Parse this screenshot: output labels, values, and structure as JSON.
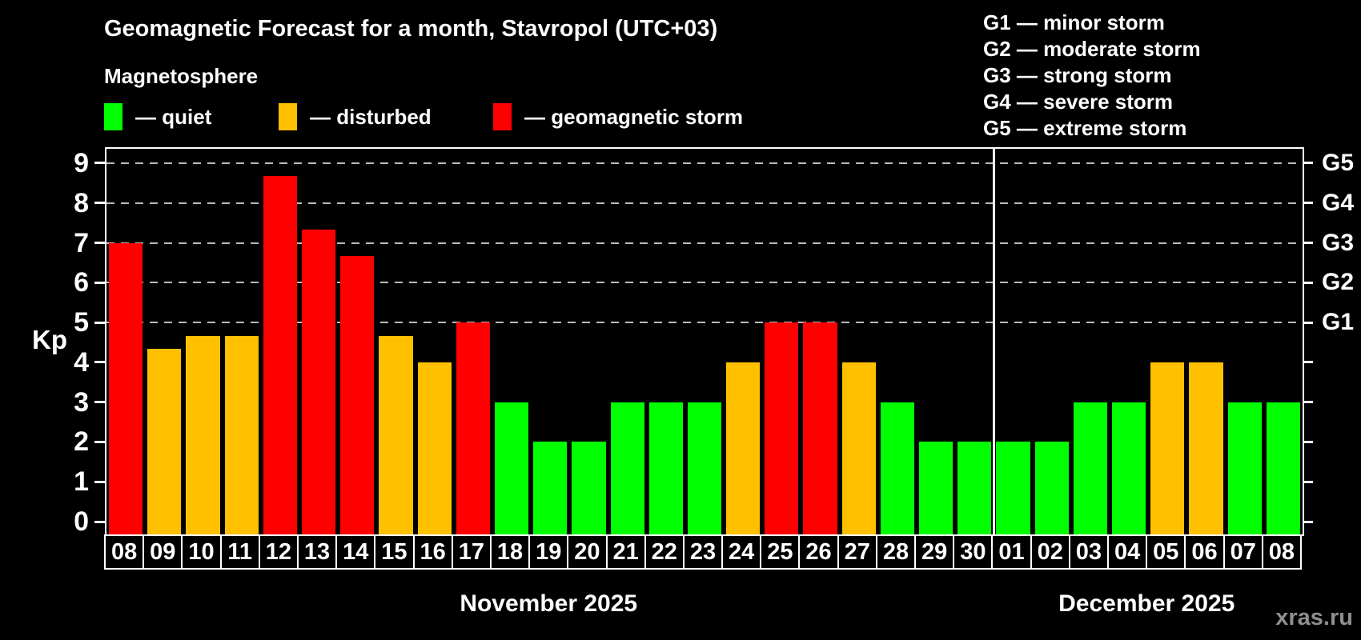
{
  "title": "Geomagnetic Forecast for a month, Stavropol (UTC+03)",
  "subtitle": "Magnetosphere",
  "legend": {
    "items": [
      {
        "label": "— quiet",
        "status": "quiet",
        "color": "#00ff00",
        "x": 130
      },
      {
        "label": "— disturbed",
        "status": "disturbed",
        "color": "#ffc000",
        "x": 348
      },
      {
        "label": "— geomagnetic storm",
        "status": "storm",
        "color": "#ff0000",
        "x": 616
      }
    ]
  },
  "storm_scale_legend": [
    "G1 — minor storm",
    "G2 — moderate storm",
    "G3 — strong storm",
    "G4 — severe storm",
    "G5 — extreme storm"
  ],
  "watermark": "xras.ru",
  "chart_data": {
    "type": "bar",
    "title": "Geomagnetic Forecast for a month, Stavropol (UTC+03)",
    "ylabel": "Kp",
    "y_ticks": [
      0,
      1,
      2,
      3,
      4,
      5,
      6,
      7,
      8,
      9
    ],
    "ylim": [
      -0.37,
      9.4
    ],
    "grid": "dashed horizontal lines at Kp 5-9 only",
    "gridlines_at": [
      5,
      6,
      7,
      8,
      9
    ],
    "right_axis_labels": [
      {
        "label": "G1",
        "value": 5
      },
      {
        "label": "G2",
        "value": 6
      },
      {
        "label": "G3",
        "value": 7
      },
      {
        "label": "G4",
        "value": 8
      },
      {
        "label": "G5",
        "value": 9
      }
    ],
    "categories": [
      "08",
      "09",
      "10",
      "11",
      "12",
      "13",
      "14",
      "15",
      "16",
      "17",
      "18",
      "19",
      "20",
      "21",
      "22",
      "23",
      "24",
      "25",
      "26",
      "27",
      "28",
      "29",
      "30",
      "01",
      "02",
      "03",
      "04",
      "05",
      "06",
      "07",
      "08"
    ],
    "values": [
      7,
      4.33,
      4.67,
      4.67,
      8.67,
      7.33,
      6.67,
      4.67,
      4,
      5,
      3,
      2,
      2,
      3,
      3,
      3,
      4,
      5,
      5,
      4,
      3,
      2,
      2,
      2,
      2,
      3,
      3,
      4,
      4,
      3,
      3
    ],
    "statuses": [
      "storm",
      "disturbed",
      "disturbed",
      "disturbed",
      "storm",
      "storm",
      "storm",
      "disturbed",
      "disturbed",
      "storm",
      "quiet",
      "quiet",
      "quiet",
      "quiet",
      "quiet",
      "quiet",
      "disturbed",
      "storm",
      "storm",
      "disturbed",
      "quiet",
      "quiet",
      "quiet",
      "quiet",
      "quiet",
      "quiet",
      "quiet",
      "disturbed",
      "disturbed",
      "quiet",
      "quiet"
    ],
    "colors": {
      "quiet": "#00ff00",
      "disturbed": "#ffc000",
      "storm": "#ff0000"
    },
    "months": [
      {
        "label": "November 2025",
        "bars": 23
      },
      {
        "label": "December 2025",
        "bars": 8
      }
    ],
    "legend_position": "top-left and top-right, outside plot"
  }
}
